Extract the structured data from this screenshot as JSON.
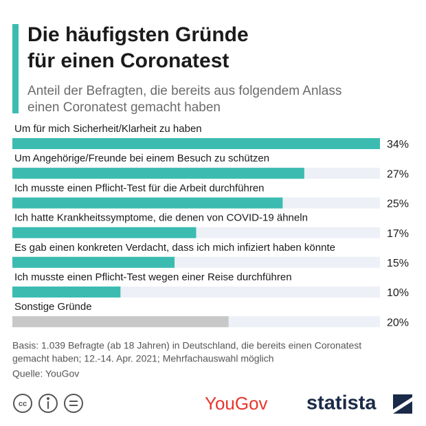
{
  "chart_data": {
    "type": "bar",
    "orientation": "horizontal",
    "title": [
      "Die häufigsten Gründe",
      "für einen Coronatest"
    ],
    "subtitle": [
      "Anteil der Befragten, die bereits aus folgendem Anlass",
      "einen Coronatest gemacht haben"
    ],
    "categories": [
      "Um für mich Sicherheit/Klarheit zu haben",
      "Um Angehörige/Freunde bei einem Besuch zu schützen",
      "Ich musste einen Pflicht-Test für die Arbeit durchführen",
      "Ich hatte Krankheitssymptome, die denen von COVID-19 ähneln",
      "Es gab einen konkreten Verdacht, dass ich mich infiziert haben könnte",
      "Ich musste einen Pflicht-Test wegen einer Reise durchführen",
      "Sonstige Gründe"
    ],
    "values": [
      34,
      27,
      25,
      17,
      15,
      10,
      20
    ],
    "value_labels": [
      "34%",
      "27%",
      "25%",
      "17%",
      "15%",
      "10%",
      "20%"
    ],
    "colors": [
      "#3cbcb1",
      "#3cbcb1",
      "#3cbcb1",
      "#3cbcb1",
      "#3cbcb1",
      "#3cbcb1",
      "#c8c8c8"
    ],
    "track_color": "#edf0f6",
    "note": [
      "Basis: 1.039 Befragte (ab 18 Jahren) in Deutschland, die bereits einen Coronatest",
      "gemacht haben; 12.-14. Apr. 2021; Mehrfachauswahl möglich"
    ],
    "source": "Quelle: YouGov",
    "logos": [
      "YouGov",
      "statista"
    ]
  }
}
